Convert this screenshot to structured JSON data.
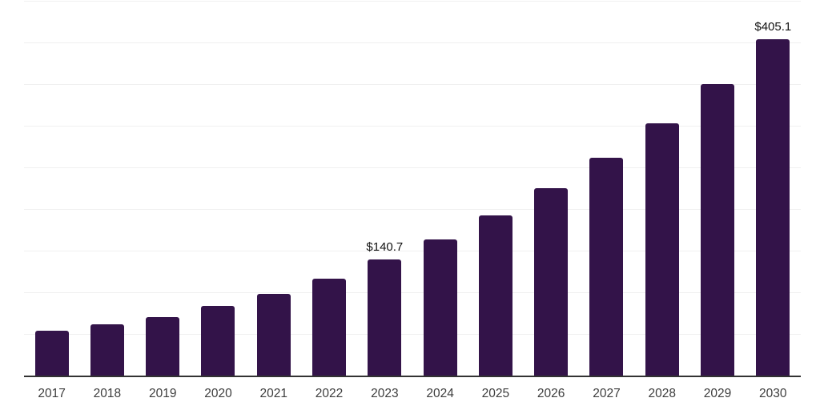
{
  "chart_data": {
    "type": "bar",
    "title": "",
    "xlabel": "",
    "ylabel": "",
    "categories": [
      "2017",
      "2018",
      "2019",
      "2020",
      "2021",
      "2022",
      "2023",
      "2024",
      "2025",
      "2026",
      "2027",
      "2028",
      "2029",
      "2030"
    ],
    "values": [
      54.5,
      62.1,
      71.2,
      84.2,
      99.4,
      117.5,
      140.7,
      164.3,
      193.0,
      225.5,
      262.7,
      303.8,
      350.6,
      405.1
    ],
    "annotations": [
      {
        "category": "2023",
        "text": "$140.7"
      },
      {
        "category": "2030",
        "text": "$405.1"
      }
    ],
    "ylim": [
      0,
      450
    ],
    "grid_step": 50,
    "grid": true,
    "legend": false,
    "colors": {
      "bar": "#331349",
      "axis_line": "#333333",
      "gridline": "#f0f0f0",
      "tick_label": "#3d3d3d",
      "data_label": "#111111",
      "background": "#ffffff"
    }
  }
}
